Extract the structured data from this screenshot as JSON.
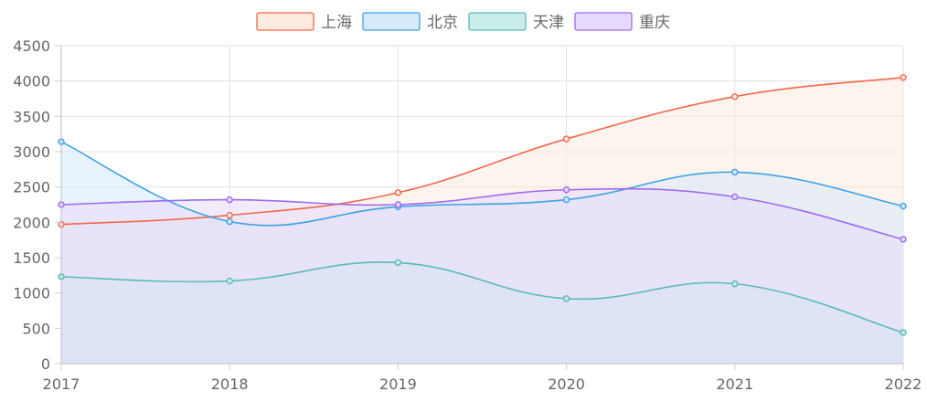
{
  "chart_data": {
    "type": "area",
    "categories": [
      "2017",
      "2018",
      "2019",
      "2020",
      "2021",
      "2022"
    ],
    "ylim": [
      0,
      4500
    ],
    "yticks": [
      "0",
      "500",
      "1000",
      "1500",
      "2000",
      "2500",
      "3000",
      "3500",
      "4000",
      "4500"
    ],
    "grid": true,
    "legend_position": "top",
    "series": [
      {
        "name": "上海",
        "values": [
          1970,
          2100,
          2420,
          3180,
          3780,
          4050
        ],
        "color": "#f2674a",
        "fill": "#fdebe0"
      },
      {
        "name": "北京",
        "values": [
          3140,
          2010,
          2220,
          2320,
          2710,
          2230
        ],
        "color": "#3aa3e3",
        "fill": "#d7eafb"
      },
      {
        "name": "天津",
        "values": [
          1230,
          1170,
          1430,
          920,
          1130,
          440
        ],
        "color": "#5bbcb6",
        "fill": "#c7ece9"
      },
      {
        "name": "重庆",
        "values": [
          2250,
          2320,
          2250,
          2460,
          2360,
          1760
        ],
        "color": "#9b6cf0",
        "fill": "#e6dafc"
      }
    ]
  }
}
